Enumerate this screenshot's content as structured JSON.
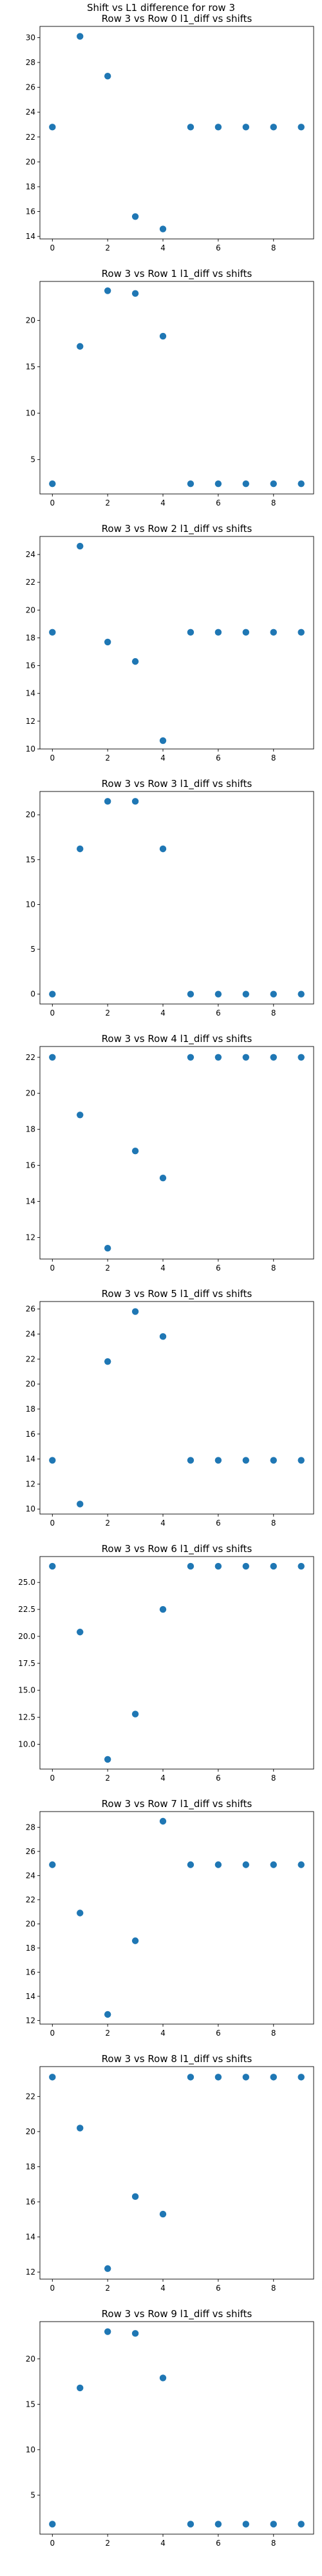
{
  "figure_title": "Shift vs L1 difference for row 3",
  "marker_color": "#1f77b4",
  "chart_data": [
    {
      "type": "scatter",
      "title": "Row 3 vs Row 0 l1_diff vs shifts",
      "x": [
        0,
        1,
        2,
        3,
        4,
        5,
        6,
        7,
        8,
        9
      ],
      "y": [
        22.8,
        30.1,
        26.9,
        15.6,
        14.6,
        22.8,
        22.8,
        22.8,
        22.8,
        22.8
      ],
      "xlim": [
        -0.45,
        9.45
      ],
      "ylim": [
        13.8,
        30.9
      ],
      "xticks": [
        0,
        2,
        4,
        6,
        8
      ],
      "yticks": [
        14,
        16,
        18,
        20,
        22,
        24,
        26,
        28,
        30
      ],
      "ytick_labels": [
        "14",
        "16",
        "18",
        "20",
        "22",
        "24",
        "26",
        "28",
        "30"
      ],
      "grid": false
    },
    {
      "type": "scatter",
      "title": "Row 3 vs Row 1 l1_diff vs shifts",
      "x": [
        0,
        1,
        2,
        3,
        4,
        5,
        6,
        7,
        8,
        9
      ],
      "y": [
        2.4,
        17.2,
        23.2,
        22.9,
        18.3,
        2.4,
        2.4,
        2.4,
        2.4,
        2.4
      ],
      "xlim": [
        -0.45,
        9.45
      ],
      "ylim": [
        1.3,
        24.2
      ],
      "xticks": [
        0,
        2,
        4,
        6,
        8
      ],
      "yticks": [
        5,
        10,
        15,
        20
      ],
      "ytick_labels": [
        "5",
        "10",
        "15",
        "20"
      ],
      "grid": false
    },
    {
      "type": "scatter",
      "title": "Row 3 vs Row 2 l1_diff vs shifts",
      "x": [
        0,
        1,
        2,
        3,
        4,
        5,
        6,
        7,
        8,
        9
      ],
      "y": [
        18.4,
        24.6,
        17.7,
        16.3,
        10.6,
        18.4,
        18.4,
        18.4,
        18.4,
        18.4
      ],
      "xlim": [
        -0.45,
        9.45
      ],
      "ylim": [
        10.0,
        25.3
      ],
      "xticks": [
        0,
        2,
        4,
        6,
        8
      ],
      "yticks": [
        10,
        12,
        14,
        16,
        18,
        20,
        22,
        24
      ],
      "ytick_labels": [
        "10",
        "12",
        "14",
        "16",
        "18",
        "20",
        "22",
        "24"
      ],
      "grid": false
    },
    {
      "type": "scatter",
      "title": "Row 3 vs Row 3 l1_diff vs shifts",
      "x": [
        0,
        1,
        2,
        3,
        4,
        5,
        6,
        7,
        8,
        9
      ],
      "y": [
        0,
        16.2,
        21.5,
        21.5,
        16.2,
        0,
        0,
        0,
        0,
        0
      ],
      "xlim": [
        -0.45,
        9.45
      ],
      "ylim": [
        -1.1,
        22.6
      ],
      "xticks": [
        0,
        2,
        4,
        6,
        8
      ],
      "yticks": [
        0,
        5,
        10,
        15,
        20
      ],
      "ytick_labels": [
        "0",
        "5",
        "10",
        "15",
        "20"
      ],
      "grid": false
    },
    {
      "type": "scatter",
      "title": "Row 3 vs Row 4 l1_diff vs shifts",
      "x": [
        0,
        1,
        2,
        3,
        4,
        5,
        6,
        7,
        8,
        9
      ],
      "y": [
        22.0,
        18.8,
        11.4,
        16.8,
        15.3,
        22.0,
        22.0,
        22.0,
        22.0,
        22.0
      ],
      "xlim": [
        -0.45,
        9.45
      ],
      "ylim": [
        10.8,
        22.6
      ],
      "xticks": [
        0,
        2,
        4,
        6,
        8
      ],
      "yticks": [
        12,
        14,
        16,
        18,
        20,
        22
      ],
      "ytick_labels": [
        "12",
        "14",
        "16",
        "18",
        "20",
        "22"
      ],
      "grid": false
    },
    {
      "type": "scatter",
      "title": "Row 3 vs Row 5 l1_diff vs shifts",
      "x": [
        0,
        1,
        2,
        3,
        4,
        5,
        6,
        7,
        8,
        9
      ],
      "y": [
        13.9,
        10.4,
        21.8,
        25.8,
        23.8,
        13.9,
        13.9,
        13.9,
        13.9,
        13.9
      ],
      "xlim": [
        -0.45,
        9.45
      ],
      "ylim": [
        9.6,
        26.6
      ],
      "xticks": [
        0,
        2,
        4,
        6,
        8
      ],
      "yticks": [
        10,
        12,
        14,
        16,
        18,
        20,
        22,
        24,
        26
      ],
      "ytick_labels": [
        "10",
        "12",
        "14",
        "16",
        "18",
        "20",
        "22",
        "24",
        "26"
      ],
      "grid": false
    },
    {
      "type": "scatter",
      "title": "Row 3 vs Row 6 l1_diff vs shifts",
      "x": [
        0,
        1,
        2,
        3,
        4,
        5,
        6,
        7,
        8,
        9
      ],
      "y": [
        26.5,
        20.4,
        8.6,
        12.8,
        22.5,
        26.5,
        26.5,
        26.5,
        26.5,
        26.5
      ],
      "xlim": [
        -0.45,
        9.45
      ],
      "ylim": [
        7.7,
        27.4
      ],
      "xticks": [
        0,
        2,
        4,
        6,
        8
      ],
      "yticks": [
        10,
        12.5,
        15,
        17.5,
        20,
        22.5,
        25
      ],
      "ytick_labels": [
        "10.0",
        "12.5",
        "15.0",
        "17.5",
        "20.0",
        "22.5",
        "25.0"
      ],
      "grid": false
    },
    {
      "type": "scatter",
      "title": "Row 3 vs Row 7 l1_diff vs shifts",
      "x": [
        0,
        1,
        2,
        3,
        4,
        5,
        6,
        7,
        8,
        9
      ],
      "y": [
        24.9,
        20.9,
        12.5,
        18.6,
        28.5,
        24.9,
        24.9,
        24.9,
        24.9,
        24.9
      ],
      "xlim": [
        -0.45,
        9.45
      ],
      "ylim": [
        11.7,
        29.3
      ],
      "xticks": [
        0,
        2,
        4,
        6,
        8
      ],
      "yticks": [
        12,
        14,
        16,
        18,
        20,
        22,
        24,
        26,
        28
      ],
      "ytick_labels": [
        "12",
        "14",
        "16",
        "18",
        "20",
        "22",
        "24",
        "26",
        "28"
      ],
      "grid": false
    },
    {
      "type": "scatter",
      "title": "Row 3 vs Row 8 l1_diff vs shifts",
      "x": [
        0,
        1,
        2,
        3,
        4,
        5,
        6,
        7,
        8,
        9
      ],
      "y": [
        23.1,
        20.2,
        12.2,
        16.3,
        15.3,
        23.1,
        23.1,
        23.1,
        23.1,
        23.1
      ],
      "xlim": [
        -0.45,
        9.45
      ],
      "ylim": [
        11.6,
        23.7
      ],
      "xticks": [
        0,
        2,
        4,
        6,
        8
      ],
      "yticks": [
        12,
        14,
        16,
        18,
        20,
        22
      ],
      "ytick_labels": [
        "12",
        "14",
        "16",
        "18",
        "20",
        "22"
      ],
      "grid": false
    },
    {
      "type": "scatter",
      "title": "Row 3 vs Row 9 l1_diff vs shifts",
      "x": [
        0,
        1,
        2,
        3,
        4,
        5,
        6,
        7,
        8,
        9
      ],
      "y": [
        1.8,
        16.8,
        23.0,
        22.8,
        17.9,
        1.8,
        1.8,
        1.8,
        1.8,
        1.8
      ],
      "xlim": [
        -0.45,
        9.45
      ],
      "ylim": [
        0.7,
        24.1
      ],
      "xticks": [
        0,
        2,
        4,
        6,
        8
      ],
      "yticks": [
        5,
        10,
        15,
        20
      ],
      "ytick_labels": [
        "5",
        "10",
        "15",
        "20"
      ],
      "grid": false
    }
  ]
}
